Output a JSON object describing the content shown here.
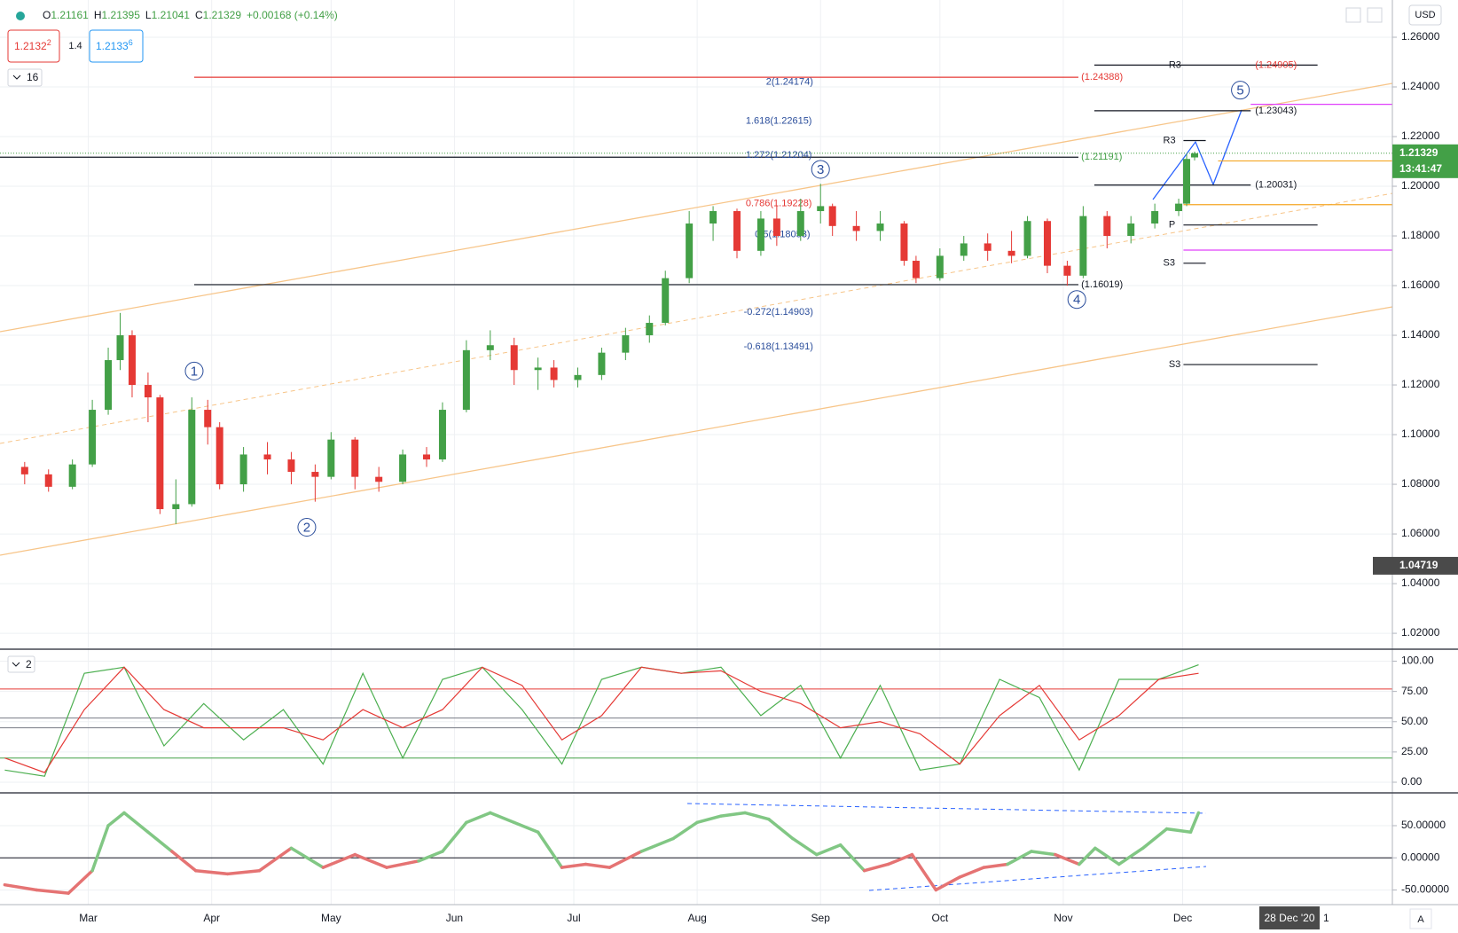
{
  "toolbar": {
    "ohlc": [
      [
        "O",
        "1.21161"
      ],
      [
        "H",
        "1.21395"
      ],
      [
        "L",
        "1.21041"
      ],
      [
        "C",
        "1.21329"
      ]
    ],
    "change": "+0.00168 (+0.14%)",
    "sell": {
      "price": "1.2132",
      "pip": "2"
    },
    "spread": "1.4",
    "buy": {
      "price": "1.2133",
      "pip": "6"
    },
    "currency": "USD",
    "date_badge": "28 Dec '20",
    "date_next": "1",
    "scale_button": "A"
  },
  "chart_data": [
    {
      "type": "candlestick",
      "pane_label": "16",
      "up_color": "#43a047",
      "down_color": "#e53935",
      "x": [
        45,
        51,
        57,
        62,
        66,
        69,
        72,
        76,
        79,
        83,
        87,
        91,
        94,
        100,
        106,
        112,
        118,
        122,
        128,
        134,
        140,
        146,
        150,
        156,
        162,
        168,
        174,
        178,
        184,
        190,
        196,
        202,
        206,
        212,
        218,
        224,
        230,
        234,
        240,
        245,
        248,
        254,
        260,
        266,
        269,
        275,
        281,
        287,
        293,
        297,
        302,
        307,
        311,
        317,
        323,
        329,
        335,
        337,
        339
      ],
      "candles": [
        [
          1.087,
          1.089,
          1.08,
          1.084
        ],
        [
          1.084,
          1.086,
          1.077,
          1.079
        ],
        [
          1.079,
          1.09,
          1.078,
          1.088
        ],
        [
          1.088,
          1.114,
          1.087,
          1.11
        ],
        [
          1.11,
          1.135,
          1.108,
          1.13
        ],
        [
          1.13,
          1.149,
          1.126,
          1.14
        ],
        [
          1.14,
          1.142,
          1.115,
          1.12
        ],
        [
          1.12,
          1.125,
          1.105,
          1.115
        ],
        [
          1.115,
          1.116,
          1.068,
          1.07
        ],
        [
          1.07,
          1.082,
          1.064,
          1.072
        ],
        [
          1.072,
          1.115,
          1.071,
          1.11
        ],
        [
          1.11,
          1.114,
          1.096,
          1.103
        ],
        [
          1.103,
          1.105,
          1.078,
          1.08
        ],
        [
          1.08,
          1.095,
          1.077,
          1.092
        ],
        [
          1.092,
          1.097,
          1.084,
          1.09
        ],
        [
          1.09,
          1.093,
          1.08,
          1.085
        ],
        [
          1.085,
          1.088,
          1.073,
          1.083
        ],
        [
          1.083,
          1.101,
          1.082,
          1.098
        ],
        [
          1.098,
          1.099,
          1.078,
          1.083
        ],
        [
          1.083,
          1.087,
          1.077,
          1.081
        ],
        [
          1.081,
          1.094,
          1.08,
          1.092
        ],
        [
          1.092,
          1.095,
          1.087,
          1.09
        ],
        [
          1.09,
          1.113,
          1.089,
          1.11
        ],
        [
          1.11,
          1.138,
          1.109,
          1.134
        ],
        [
          1.134,
          1.142,
          1.13,
          1.136
        ],
        [
          1.136,
          1.139,
          1.12,
          1.126
        ],
        [
          1.126,
          1.131,
          1.118,
          1.127
        ],
        [
          1.127,
          1.13,
          1.119,
          1.122
        ],
        [
          1.122,
          1.127,
          1.119,
          1.124
        ],
        [
          1.124,
          1.135,
          1.122,
          1.133
        ],
        [
          1.133,
          1.143,
          1.13,
          1.14
        ],
        [
          1.14,
          1.148,
          1.137,
          1.145
        ],
        [
          1.145,
          1.166,
          1.144,
          1.163
        ],
        [
          1.163,
          1.19,
          1.161,
          1.185
        ],
        [
          1.185,
          1.192,
          1.178,
          1.19
        ],
        [
          1.19,
          1.191,
          1.171,
          1.174
        ],
        [
          1.174,
          1.19,
          1.172,
          1.187
        ],
        [
          1.187,
          1.192,
          1.176,
          1.18
        ],
        [
          1.18,
          1.195,
          1.178,
          1.19
        ],
        [
          1.19,
          1.201,
          1.185,
          1.192
        ],
        [
          1.192,
          1.193,
          1.18,
          1.184
        ],
        [
          1.184,
          1.19,
          1.178,
          1.182
        ],
        [
          1.182,
          1.19,
          1.178,
          1.185
        ],
        [
          1.185,
          1.186,
          1.168,
          1.17
        ],
        [
          1.17,
          1.172,
          1.161,
          1.163
        ],
        [
          1.163,
          1.175,
          1.162,
          1.172
        ],
        [
          1.172,
          1.18,
          1.17,
          1.177
        ],
        [
          1.177,
          1.181,
          1.17,
          1.174
        ],
        [
          1.174,
          1.182,
          1.169,
          1.172
        ],
        [
          1.172,
          1.188,
          1.171,
          1.186
        ],
        [
          1.186,
          1.187,
          1.165,
          1.168
        ],
        [
          1.168,
          1.17,
          1.16,
          1.164
        ],
        [
          1.164,
          1.192,
          1.163,
          1.188
        ],
        [
          1.188,
          1.19,
          1.175,
          1.18
        ],
        [
          1.18,
          1.188,
          1.177,
          1.185
        ],
        [
          1.185,
          1.193,
          1.183,
          1.19
        ],
        [
          1.19,
          1.195,
          1.188,
          1.193
        ],
        [
          1.193,
          1.213,
          1.192,
          1.211
        ],
        [
          1.21161,
          1.21395,
          1.21041,
          1.21329
        ]
      ],
      "xlim": [
        38.8,
        388.7
      ],
      "ylim": [
        1.0136,
        1.275
      ],
      "yticks": [
        {
          "value": 1.26,
          "label": "1.26000"
        },
        {
          "value": 1.24,
          "label": "1.24000"
        },
        {
          "value": 1.22,
          "label": "1.22000"
        },
        {
          "value": 1.2,
          "label": "1.20000"
        },
        {
          "value": 1.18,
          "label": "1.18000"
        },
        {
          "value": 1.16,
          "label": "1.16000"
        },
        {
          "value": 1.14,
          "label": "1.14000"
        },
        {
          "value": 1.12,
          "label": "1.12000"
        },
        {
          "value": 1.1,
          "label": "1.10000"
        },
        {
          "value": 1.08,
          "label": "1.08000"
        },
        {
          "value": 1.06,
          "label": "1.06000"
        },
        {
          "value": 1.04,
          "label": "1.04000"
        },
        {
          "value": 1.02,
          "label": "1.02000"
        }
      ],
      "xticks": [
        {
          "value": 61,
          "label": "Mar"
        },
        {
          "value": 92,
          "label": "Apr"
        },
        {
          "value": 122,
          "label": "May"
        },
        {
          "value": 153,
          "label": "Jun"
        },
        {
          "value": 183,
          "label": "Jul"
        },
        {
          "value": 214,
          "label": "Aug"
        },
        {
          "value": 245,
          "label": "Sep"
        },
        {
          "value": 275,
          "label": "Oct"
        },
        {
          "value": 306,
          "label": "Nov"
        },
        {
          "value": 336,
          "label": "Dec"
        }
      ],
      "levels": [
        {
          "value": 1.2488,
          "color": "#131722",
          "x": [
            313.8,
            369.9
          ]
        },
        {
          "value": 1.2439,
          "color": "#e53935",
          "x": [
            87.6,
            309.8
          ]
        },
        {
          "value": 1.2304,
          "color": "#131722",
          "x": [
            313.8,
            353.1
          ]
        },
        {
          "value": 1.233,
          "color": "#e040fb",
          "x": [
            353.1,
            388.7
          ]
        },
        {
          "value": 1.2184,
          "color": "#131722",
          "x": [
            336.2,
            341.8
          ]
        },
        {
          "value": 1.2117,
          "color": "#131722",
          "x": [
            38.8,
            309.8
          ]
        },
        {
          "value": 1.2102,
          "color": "#f5a623",
          "x": [
            344.9,
            388.7
          ]
        },
        {
          "value": 1.2005,
          "color": "#131722",
          "x": [
            313.8,
            353.1
          ]
        },
        {
          "value": 1.1926,
          "color": "#f5a623",
          "x": [
            336.2,
            388.7
          ]
        },
        {
          "value": 1.1844,
          "color": "#131722",
          "x": [
            336.2,
            369.9
          ]
        },
        {
          "value": 1.1743,
          "color": "#e040fb",
          "x": [
            336.2,
            388.7
          ]
        },
        {
          "value": 1.169,
          "color": "#131722",
          "x": [
            336.2,
            341.8
          ]
        },
        {
          "value": 1.1604,
          "color": "#131722",
          "x": [
            87.6,
            309.8
          ]
        },
        {
          "value": 1.1282,
          "color": "#131722",
          "x": [
            336.2,
            369.9
          ]
        }
      ],
      "level_labels": [
        {
          "text": "R3",
          "x": 332.5,
          "y": 1.2488,
          "color": "#131722"
        },
        {
          "text": "(1.24905)",
          "x": 354.2,
          "y": 1.2488,
          "color": "#e53935"
        },
        {
          "text": "2(1.24174)",
          "x": 231.3,
          "y": 1.242,
          "color": "#2a4d9b"
        },
        {
          "text": "(1.24388)",
          "x": 310.5,
          "y": 1.2439,
          "color": "#e53935"
        },
        {
          "text": "(1.23043)",
          "x": 354.2,
          "y": 1.2304,
          "color": "#131722"
        },
        {
          "text": "1.618(1.22615)",
          "x": 226.2,
          "y": 1.2263,
          "color": "#2a4d9b"
        },
        {
          "text": "R3",
          "x": 331.1,
          "y": 1.2184,
          "color": "#131722"
        },
        {
          "text": "1.272(1.21204)",
          "x": 226.2,
          "y": 1.2124,
          "color": "#2a4d9b"
        },
        {
          "text": "(1.21191)",
          "x": 310.5,
          "y": 1.2117,
          "color": "#43a047"
        },
        {
          "text": "(1.20031)",
          "x": 354.2,
          "y": 1.2005,
          "color": "#131722"
        },
        {
          "text": "0.786(1.19228)",
          "x": 226.2,
          "y": 1.193,
          "color": "#e53935"
        },
        {
          "text": "0.5(1.18053)",
          "x": 228.5,
          "y": 1.1806,
          "color": "#2a4d9b"
        },
        {
          "text": "P",
          "x": 332.5,
          "y": 1.1844,
          "color": "#131722"
        },
        {
          "text": "S3",
          "x": 331.1,
          "y": 1.169,
          "color": "#131722"
        },
        {
          "text": "(1.16019)",
          "x": 310.5,
          "y": 1.1604,
          "color": "#131722"
        },
        {
          "text": "-0.272(1.14903)",
          "x": 225.7,
          "y": 1.1492,
          "color": "#2a4d9b"
        },
        {
          "text": "-0.618(1.13491)",
          "x": 225.7,
          "y": 1.1353,
          "color": "#2a4d9b"
        },
        {
          "text": "S3",
          "x": 332.5,
          "y": 1.1282,
          "color": "#131722"
        }
      ],
      "waves": [
        {
          "label": "1",
          "x": 87.6,
          "y": 1.1256
        },
        {
          "label": "2",
          "x": 115.9,
          "y": 1.0627
        },
        {
          "label": "3",
          "x": 245,
          "y": 1.2068
        },
        {
          "label": "4",
          "x": 309.4,
          "y": 1.1544
        },
        {
          "label": "5",
          "x": 350.5,
          "y": 1.2387
        }
      ],
      "last_price": {
        "value": 1.21329,
        "label": "1.21329",
        "timer": "13:41:47",
        "color": "#43a047"
      },
      "crosshair": {
        "value": 1.04719,
        "label": "1.04719"
      }
    },
    {
      "type": "line",
      "pane_label": "2",
      "ylim": [
        -8.8,
        109.9
      ],
      "yticks": [
        {
          "value": 100,
          "label": "100.00"
        },
        {
          "value": 75,
          "label": "75.00"
        },
        {
          "value": 50,
          "label": "50.00"
        },
        {
          "value": 25,
          "label": "25.00"
        },
        {
          "value": 0,
          "label": "0.00"
        }
      ],
      "levels": [
        {
          "value": 77,
          "color": "#e53935"
        },
        {
          "value": 53,
          "color": "#787b86"
        },
        {
          "value": 45,
          "color": "#787b86"
        },
        {
          "value": 20,
          "color": "#43a047"
        }
      ],
      "x": [
        40,
        50,
        60,
        70,
        80,
        90,
        100,
        110,
        120,
        130,
        140,
        150,
        160,
        170,
        180,
        190,
        200,
        210,
        220,
        230,
        240,
        250,
        260,
        270,
        280,
        290,
        300,
        310,
        320,
        330,
        340
      ],
      "series": [
        {
          "color": "#4caf50",
          "values": [
            10,
            5,
            90,
            95,
            30,
            65,
            35,
            60,
            15,
            90,
            20,
            85,
            95,
            60,
            15,
            85,
            95,
            90,
            95,
            55,
            80,
            20,
            80,
            10,
            15,
            85,
            70,
            10,
            85,
            85,
            97
          ]
        },
        {
          "color": "#e53935",
          "values": [
            20,
            8,
            60,
            95,
            60,
            45,
            45,
            45,
            35,
            60,
            45,
            60,
            95,
            80,
            35,
            55,
            95,
            90,
            92,
            75,
            65,
            45,
            50,
            40,
            15,
            55,
            80,
            35,
            55,
            85,
            90
          ]
        }
      ]
    },
    {
      "type": "line",
      "ylim": [
        -72.8,
        101
      ],
      "yticks": [
        {
          "value": 50,
          "label": "50.00000"
        },
        {
          "value": 0,
          "label": "0.00000"
        },
        {
          "value": -50,
          "label": "-50.00000"
        }
      ],
      "levels": [
        {
          "value": 0,
          "color": "#131722"
        }
      ],
      "x": [
        40,
        48,
        56,
        62,
        66,
        70,
        76,
        82,
        88,
        96,
        104,
        112,
        120,
        128,
        136,
        144,
        150,
        156,
        162,
        168,
        174,
        180,
        186,
        192,
        200,
        208,
        214,
        220,
        226,
        232,
        238,
        244,
        250,
        256,
        262,
        268,
        274,
        280,
        286,
        292,
        298,
        304,
        310,
        314,
        320,
        326,
        332,
        338,
        340
      ],
      "series": [
        {
          "color": "#81c784",
          "negative_color": "#e57373",
          "values": [
            -42,
            -50,
            -55,
            -20,
            50,
            70,
            40,
            10,
            -20,
            -25,
            -20,
            15,
            -15,
            5,
            -15,
            -5,
            10,
            55,
            70,
            55,
            40,
            -15,
            -10,
            -15,
            10,
            30,
            55,
            65,
            70,
            60,
            30,
            5,
            20,
            -20,
            -10,
            5,
            -50,
            -30,
            -15,
            -10,
            10,
            5,
            -10,
            15,
            -10,
            15,
            45,
            40,
            70
          ]
        }
      ]
    }
  ]
}
